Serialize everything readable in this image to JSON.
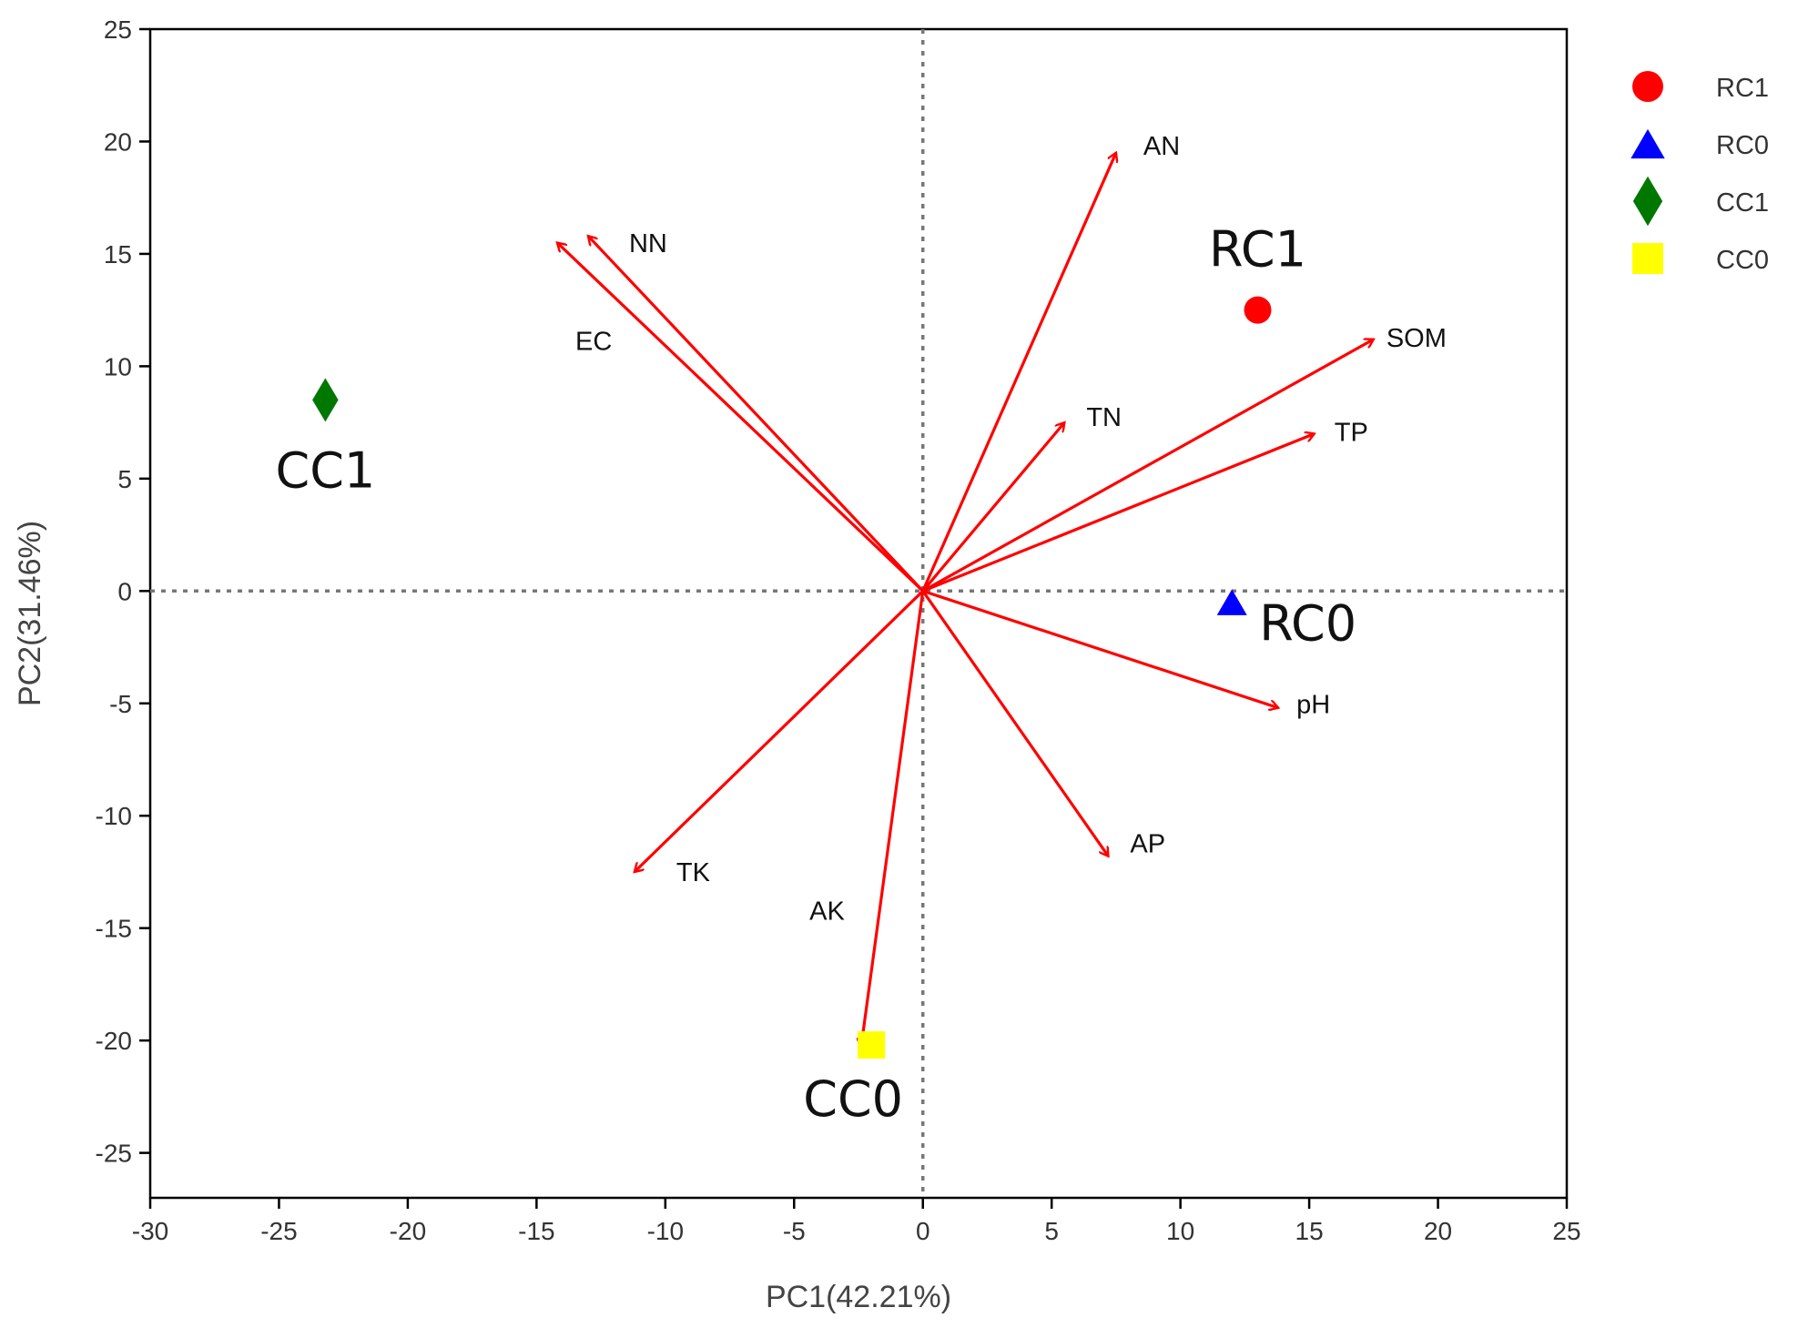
{
  "chart_data": {
    "type": "scatter",
    "subtype": "pca-biplot",
    "xlabel": "PC1(42.21%)",
    "ylabel": "PC2(31.46%)",
    "xlim": [
      -30,
      25
    ],
    "ylim": [
      -27,
      25
    ],
    "xticks": [
      -30,
      -25,
      -20,
      -15,
      -10,
      -5,
      0,
      5,
      10,
      15,
      20,
      25
    ],
    "yticks": [
      -25,
      -20,
      -15,
      -10,
      -5,
      0,
      5,
      10,
      15,
      20,
      25
    ],
    "reference_lines": {
      "x": 0,
      "y": 0,
      "style": "dotted"
    },
    "legend_position": "top-right (outside plot)",
    "arrow_color": "#ff0000",
    "samples": [
      {
        "name": "RC1",
        "label": "RC1",
        "x": 13.0,
        "y": 12.5,
        "marker": "circle",
        "color": "#ff0000"
      },
      {
        "name": "RC0",
        "label": "RC0",
        "x": 12.0,
        "y": -0.5,
        "marker": "triangle",
        "color": "#0000ff"
      },
      {
        "name": "CC1",
        "label": "CC1",
        "x": -23.2,
        "y": 8.5,
        "marker": "diamond",
        "color": "#007800"
      },
      {
        "name": "CC0",
        "label": "CC0",
        "x": -2.0,
        "y": -20.2,
        "marker": "square",
        "color": "#ffff00"
      }
    ],
    "loadings": [
      {
        "name": "AN",
        "x": 7.5,
        "y": 19.5
      },
      {
        "name": "NN",
        "x": -13.0,
        "y": 15.8
      },
      {
        "name": "EC",
        "x": -14.2,
        "y": 15.5
      },
      {
        "name": "SOM",
        "x": 17.5,
        "y": 11.2
      },
      {
        "name": "TN",
        "x": 5.5,
        "y": 7.5
      },
      {
        "name": "TP",
        "x": 15.2,
        "y": 7.0
      },
      {
        "name": "pH",
        "x": 13.8,
        "y": -5.2
      },
      {
        "name": "AP",
        "x": 7.2,
        "y": -11.8
      },
      {
        "name": "TK",
        "x": -11.2,
        "y": -12.5
      },
      {
        "name": "AK",
        "x": -2.4,
        "y": -20.3
      }
    ]
  }
}
